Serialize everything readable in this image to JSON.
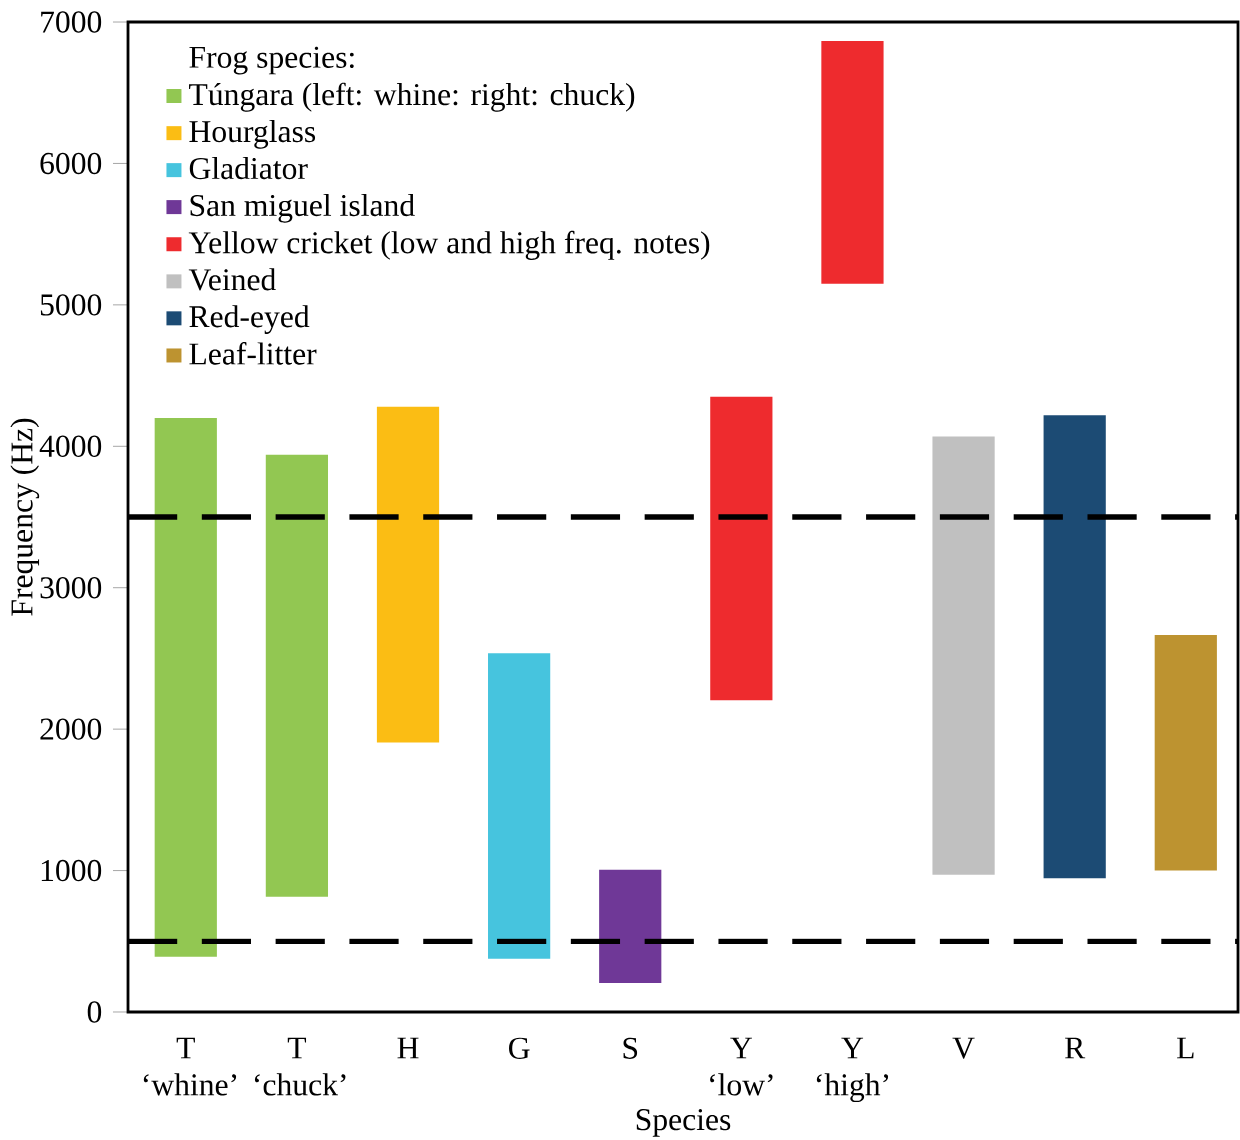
{
  "chart_data": {
    "type": "bar",
    "xlabel": "Species",
    "ylabel": "Frequency (Hz)",
    "legend_title": "Frog species:",
    "legend": "top left",
    "categories": [
      "T ‘whine’",
      "T ‘chuck’",
      "H",
      "G",
      "S",
      "Y ‘low’",
      "Y ‘high’",
      "V",
      "R",
      "L"
    ],
    "ylim": [
      0,
      7000
    ],
    "yticks": [
      0,
      1000,
      2000,
      3000,
      4000,
      5000,
      6000,
      7000
    ],
    "series": [
      {
        "name": "Túngara (left: whine: right: chuck)",
        "color": "#92c752",
        "base": [
          390,
          815,
          null,
          null,
          null,
          null,
          null,
          null,
          null,
          null
        ],
        "values": [
          3810,
          3125,
          null,
          null,
          null,
          null,
          null,
          null,
          null,
          null
        ]
      },
      {
        "name": "Hourglass",
        "color": "#fbbd14",
        "base": [
          null,
          null,
          1905,
          null,
          null,
          null,
          null,
          null,
          null,
          null
        ],
        "values": [
          null,
          null,
          2375,
          null,
          null,
          null,
          null,
          null,
          null,
          null
        ]
      },
      {
        "name": "Gladiator",
        "color": "#46c4de",
        "base": [
          null,
          null,
          null,
          376,
          null,
          null,
          null,
          null,
          null,
          null
        ],
        "values": [
          null,
          null,
          null,
          2160,
          null,
          null,
          null,
          null,
          null,
          null
        ]
      },
      {
        "name": "San miguel island",
        "color": "#6f3897",
        "base": [
          null,
          null,
          null,
          null,
          205,
          null,
          null,
          null,
          null,
          null
        ],
        "values": [
          null,
          null,
          null,
          null,
          800,
          null,
          null,
          null,
          null,
          null
        ]
      },
      {
        "name": "Yellow cricket (low and high freq. notes)",
        "color": "#ee2b2e",
        "base": [
          null,
          null,
          null,
          null,
          null,
          2205,
          5150,
          null,
          null,
          null
        ],
        "values": [
          null,
          null,
          null,
          null,
          null,
          2145,
          1715,
          null,
          null,
          null
        ]
      },
      {
        "name": "Veined",
        "color": "#c0c0c0",
        "base": [
          null,
          null,
          null,
          null,
          null,
          null,
          null,
          970,
          null,
          null
        ],
        "values": [
          null,
          null,
          null,
          null,
          null,
          null,
          null,
          3100,
          null,
          null
        ]
      },
      {
        "name": "Red-eyed",
        "color": "#1c4b74",
        "base": [
          null,
          null,
          null,
          null,
          null,
          null,
          null,
          null,
          945,
          null
        ],
        "values": [
          null,
          null,
          null,
          null,
          null,
          null,
          null,
          null,
          3275,
          null
        ]
      },
      {
        "name": "Leaf-litter",
        "color": "#bd9330",
        "base": [
          null,
          null,
          null,
          null,
          null,
          null,
          null,
          null,
          null,
          1000
        ],
        "values": [
          null,
          null,
          null,
          null,
          null,
          null,
          null,
          null,
          null,
          1665
        ]
      }
    ],
    "ref_lines": [
      {
        "axis": "y",
        "value": 3500,
        "color": "#000000",
        "line_style": "dashed"
      },
      {
        "axis": "y",
        "value": 500,
        "color": "#000000",
        "line_style": "dashed"
      }
    ]
  }
}
